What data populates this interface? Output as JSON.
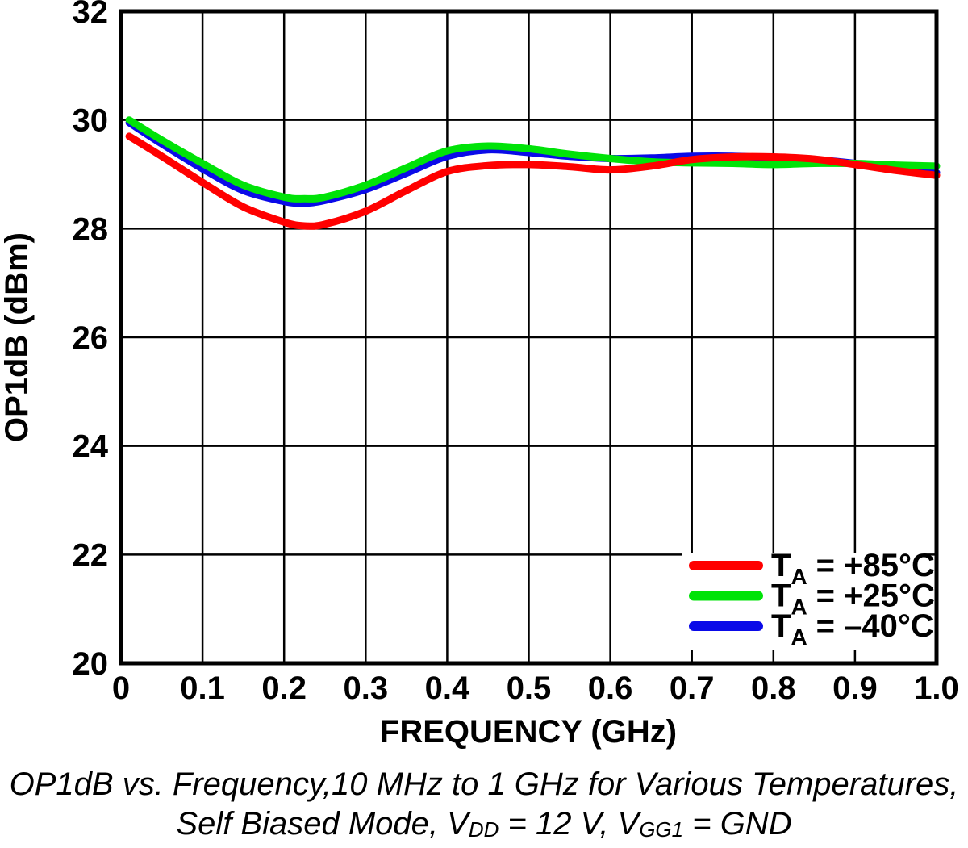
{
  "caption": {
    "line1": "OP1dB vs. Frequency,10 MHz to 1 GHz for Various Temperatures,",
    "line2_parts": [
      "Self Biased Mode, V",
      "DD",
      " = 12 V, V",
      "GG1",
      " = GND"
    ]
  },
  "chart_data": {
    "type": "line",
    "title": "",
    "xlabel": "FREQUENCY (GHz)",
    "ylabel": "OP1dB (dBm)",
    "xlim": [
      0,
      1.0
    ],
    "ylim": [
      20,
      32
    ],
    "xticks": [
      0,
      0.1,
      0.2,
      0.3,
      0.4,
      0.5,
      0.6,
      0.7,
      0.8,
      0.9,
      1.0
    ],
    "xtick_labels": [
      "0",
      "0.1",
      "0.2",
      "0.3",
      "0.4",
      "0.5",
      "0.6",
      "0.7",
      "0.8",
      "0.9",
      "1.0"
    ],
    "yticks": [
      20,
      22,
      24,
      26,
      28,
      30,
      32
    ],
    "ytick_labels": [
      "20",
      "22",
      "24",
      "26",
      "28",
      "30",
      "32"
    ],
    "grid": true,
    "grid_color": "#000000",
    "frame_color": "#000000",
    "legend_position": "lower right",
    "x": [
      0.01,
      0.05,
      0.1,
      0.15,
      0.2,
      0.225,
      0.25,
      0.3,
      0.35,
      0.4,
      0.45,
      0.5,
      0.55,
      0.6,
      0.65,
      0.7,
      0.75,
      0.8,
      0.85,
      0.9,
      0.95,
      1.0
    ],
    "series": [
      {
        "name": "TA = +85°C",
        "legend": {
          "pre": "T",
          "sub": "A",
          "rest": "= +85°C"
        },
        "color": "#FF0000",
        "values": [
          29.7,
          29.33,
          28.85,
          28.4,
          28.12,
          28.05,
          28.08,
          28.32,
          28.7,
          29.05,
          29.16,
          29.18,
          29.14,
          29.08,
          29.15,
          29.27,
          29.32,
          29.32,
          29.28,
          29.18,
          29.07,
          28.98
        ]
      },
      {
        "name": "TA = +25°C",
        "legend": {
          "pre": "T",
          "sub": "A",
          "rest": "= +25°C"
        },
        "color": "#00E308",
        "values": [
          30.0,
          29.63,
          29.2,
          28.8,
          28.58,
          28.55,
          28.58,
          28.8,
          29.12,
          29.43,
          29.52,
          29.47,
          29.37,
          29.29,
          29.23,
          29.21,
          29.2,
          29.18,
          29.2,
          29.2,
          29.17,
          29.15
        ]
      },
      {
        "name": "TA = –40°C",
        "legend": {
          "pre": "T",
          "sub": "A",
          "rest": "= –40°C"
        },
        "color": "#0A0AE8",
        "values": [
          29.95,
          29.56,
          29.1,
          28.7,
          28.5,
          28.47,
          28.52,
          28.72,
          29.02,
          29.33,
          29.45,
          29.4,
          29.33,
          29.29,
          29.3,
          29.33,
          29.33,
          29.3,
          29.27,
          29.2,
          29.1,
          29.03
        ]
      }
    ]
  }
}
